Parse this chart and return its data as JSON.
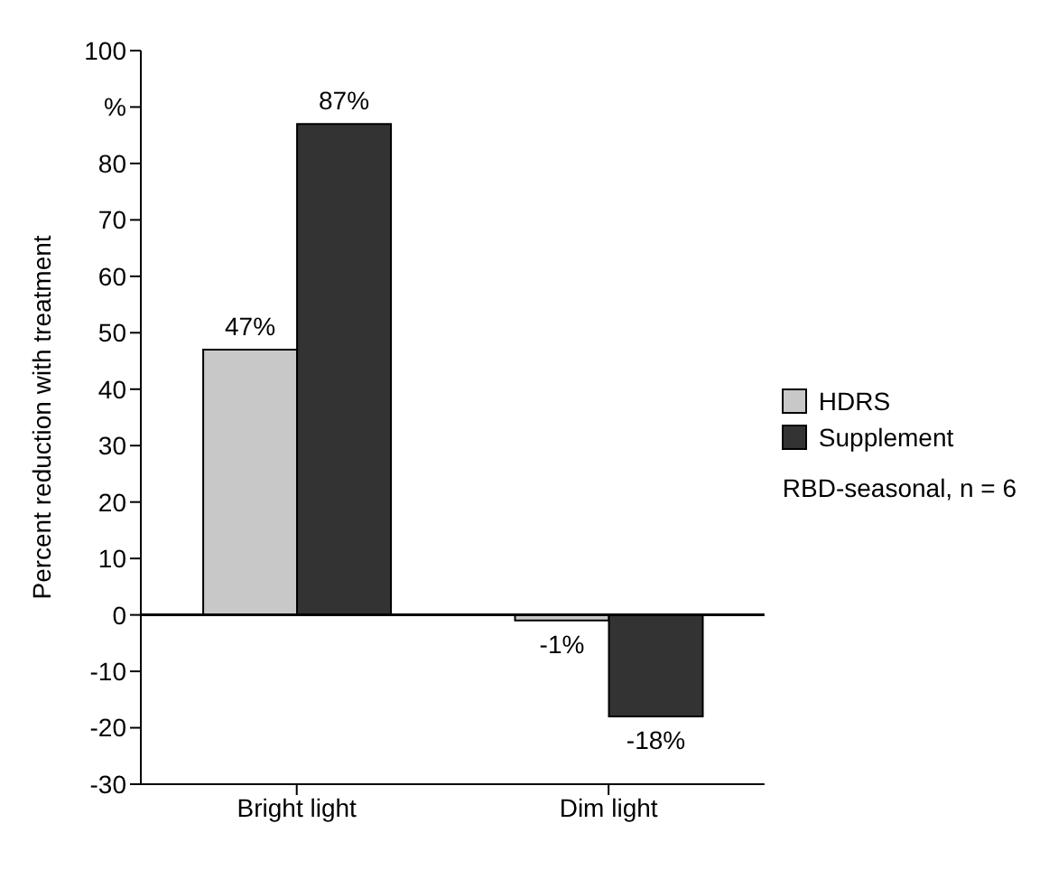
{
  "chart_data": {
    "type": "bar",
    "ylabel": "Percent reduction with treatment",
    "categories": [
      "Bright light",
      "Dim light"
    ],
    "series": [
      {
        "name": "HDRS",
        "color": "#c8c8c8",
        "values": [
          47,
          -1
        ],
        "value_labels": [
          "47%",
          "-1%"
        ]
      },
      {
        "name": "Supplement",
        "color": "#333333",
        "values": [
          87,
          -18
        ],
        "value_labels": [
          "87%",
          "-18%"
        ]
      }
    ],
    "ylim": [
      -30,
      100
    ],
    "yticks": [
      -30,
      -20,
      -10,
      0,
      10,
      20,
      30,
      40,
      50,
      60,
      70,
      80,
      {
        "value": 90,
        "label": "%"
      },
      100
    ],
    "ref_lines": [
      {
        "axis": "y",
        "value": 0,
        "label": null
      }
    ],
    "annotations": [
      "RBD-seasonal, n = 6"
    ],
    "legend": "right"
  }
}
